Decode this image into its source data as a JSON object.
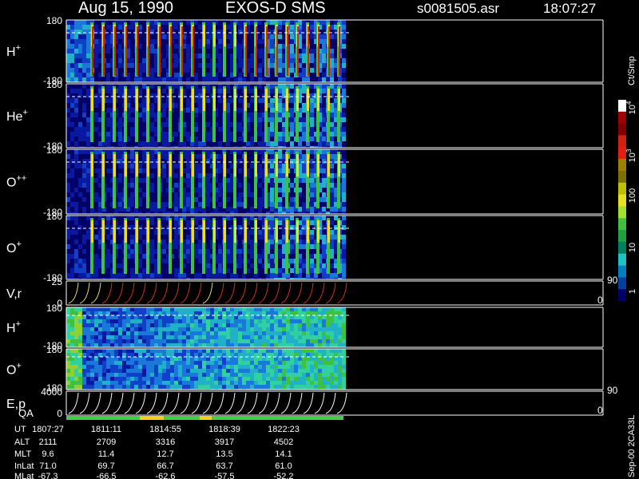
{
  "header": {
    "date": "Aug 15, 1990",
    "instrument": "EXOS-D SMS",
    "file": "s0081505.asr",
    "time": "18:07:27"
  },
  "panels": [
    {
      "label": "H",
      "sup": "+",
      "top": "180",
      "bottom": "-180"
    },
    {
      "label": "He",
      "sup": "+",
      "top": "180",
      "bottom": "-180"
    },
    {
      "label": "O",
      "sup": "++",
      "top": "180",
      "bottom": "-180"
    },
    {
      "label": "O",
      "sup": "+",
      "top": "180",
      "bottom": "-180"
    },
    {
      "label": "V,r",
      "top": "25",
      "bottom": "0",
      "right_top": "90",
      "right_bottom": "0"
    },
    {
      "label": "H",
      "sup": "+",
      "top": "180",
      "bottom": "-180"
    },
    {
      "label": "O",
      "sup": "+",
      "top": "180",
      "bottom": "-180"
    },
    {
      "label": "E,p",
      "top": "4000",
      "bottom": "0",
      "right_top": "90",
      "right_bottom": "0"
    }
  ],
  "qa_label": "QA",
  "colorbar": {
    "unit": "Ct/Smp",
    "ticks": [
      {
        "base": "10",
        "exp": "4"
      },
      {
        "base": "10",
        "exp": "3"
      },
      {
        "base": "100"
      },
      {
        "base": "10"
      },
      {
        "base": "1"
      }
    ]
  },
  "table": {
    "rows": [
      {
        "label": "UT",
        "values": [
          "1807:27",
          "1811:11",
          "1814:55",
          "1818:39",
          "1822:23"
        ]
      },
      {
        "label": "ALT",
        "values": [
          "2111",
          "2709",
          "3316",
          "3917",
          "4502"
        ]
      },
      {
        "label": "MLT",
        "values": [
          "9.6",
          "11.4",
          "12.7",
          "13.5",
          "14.1"
        ]
      },
      {
        "label": "InLat",
        "values": [
          "71.0",
          "69.7",
          "66.7",
          "63.7",
          "61.0"
        ]
      },
      {
        "label": "MLat",
        "values": [
          "-67.3",
          "-66.5",
          "-62.6",
          "-57.5",
          "-52.2"
        ]
      }
    ]
  },
  "footer": "Sep-00 2CA33L"
}
